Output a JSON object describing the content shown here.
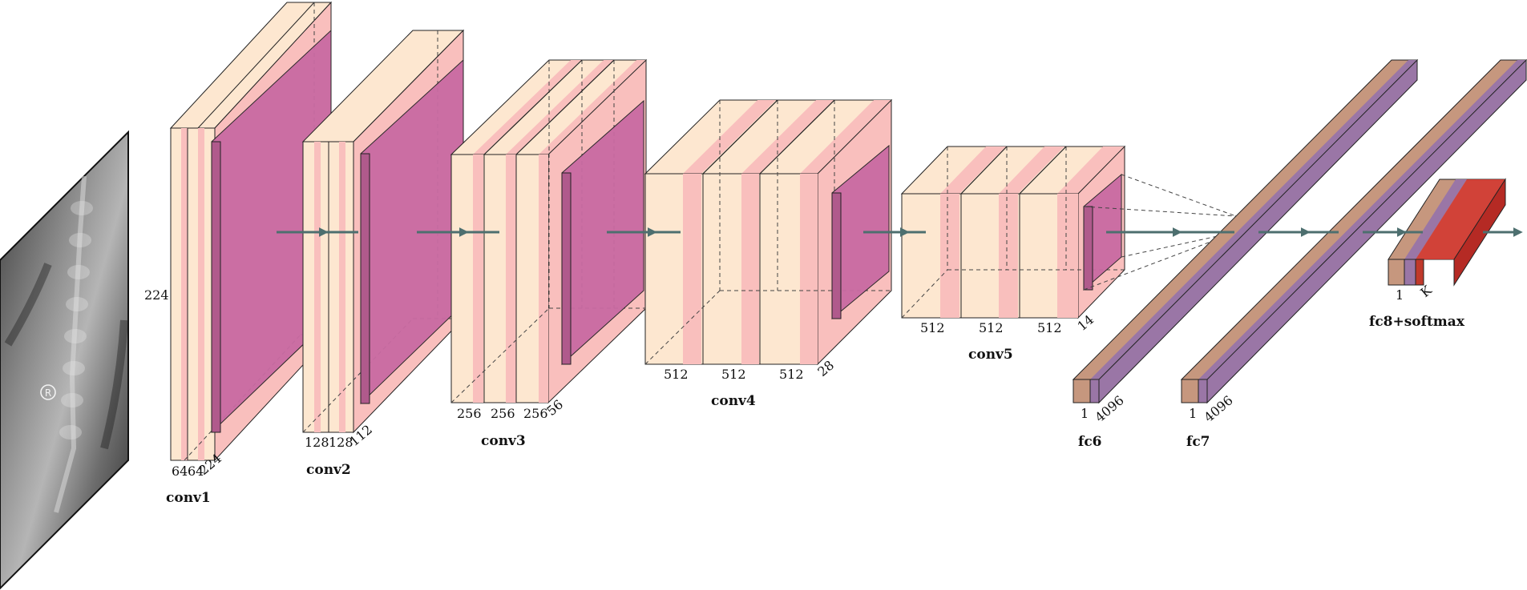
{
  "colors": {
    "conv_face": "#fde7d0",
    "conv_band": "#f9bfbd",
    "pool": "#c96aa2",
    "pool_side": "#b05a8c",
    "fc_tan": "#c6977e",
    "fc_purple": "#9a76a6",
    "softmax": "#d2332c",
    "arrow": "#4d6f6f"
  },
  "input": {
    "name": "xray-input-image",
    "marker": "R"
  },
  "blocks": {
    "conv1": {
      "title": "conv1",
      "dim_height": "224",
      "channels": [
        "64",
        "64"
      ],
      "depth": "224"
    },
    "conv2": {
      "title": "conv2",
      "channels": [
        "128",
        "128"
      ],
      "depth": "112"
    },
    "conv3": {
      "title": "conv3",
      "channels": [
        "256",
        "256",
        "256"
      ],
      "depth": "56"
    },
    "conv4": {
      "title": "conv4",
      "channels": [
        "512",
        "512",
        "512"
      ],
      "depth": "28"
    },
    "conv5": {
      "title": "conv5",
      "channels": [
        "512",
        "512",
        "512"
      ],
      "depth": "14"
    },
    "fc6": {
      "title": "fc6",
      "width": "1",
      "depth": "4096"
    },
    "fc7": {
      "title": "fc7",
      "width": "1",
      "depth": "4096"
    },
    "fc8": {
      "title": "fc8+softmax",
      "width": "1",
      "depth": "K"
    }
  }
}
